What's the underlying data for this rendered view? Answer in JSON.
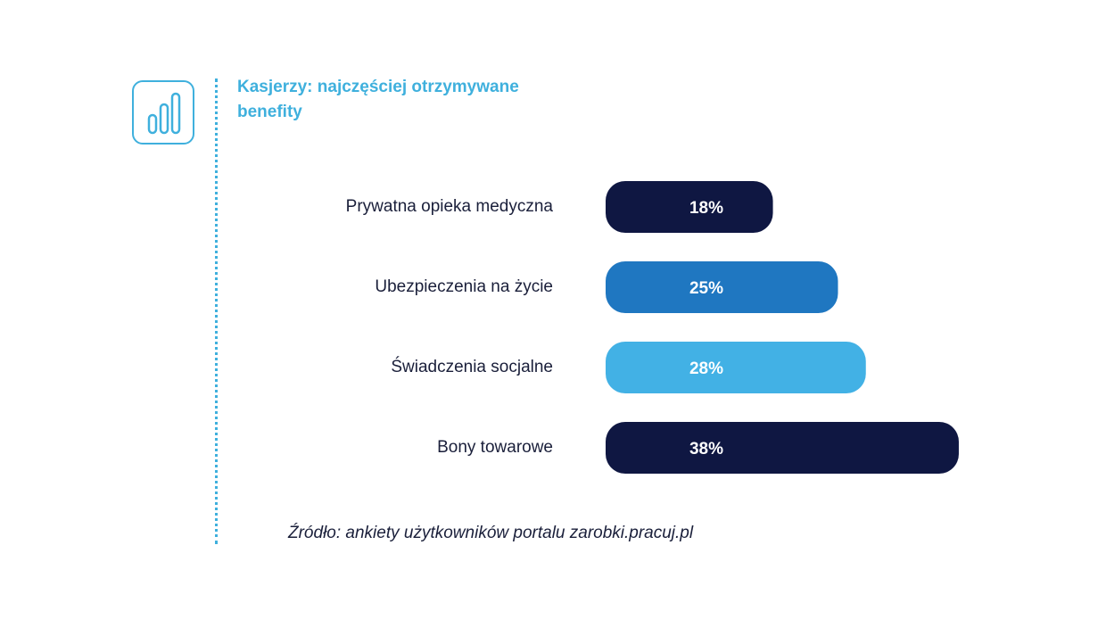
{
  "title": "Kasjerzy: najczęściej otrzymywane benefity",
  "source": "Źródło: ankiety użytkowników portalu zarobki.pracuj.pl",
  "icon": "bar-chart-icon",
  "colors": {
    "accent": "#3fb0dd",
    "dark": "#0f1742",
    "medium": "#1f77c1",
    "light": "#42b1e5"
  },
  "chart_data": {
    "type": "bar",
    "orientation": "horizontal",
    "categories": [
      "Prywatna opieka medyczna",
      "Ubezpieczenia na życie",
      "Świadczenia socjalne",
      "Bony towarowe"
    ],
    "values": [
      18,
      25,
      28,
      38
    ],
    "labels": [
      "18%",
      "25%",
      "28%",
      "38%"
    ],
    "bar_colors": [
      "#0f1742",
      "#1f77c1",
      "#42b1e5",
      "#0f1742"
    ],
    "unit": "%",
    "grid": false,
    "legend": false
  }
}
